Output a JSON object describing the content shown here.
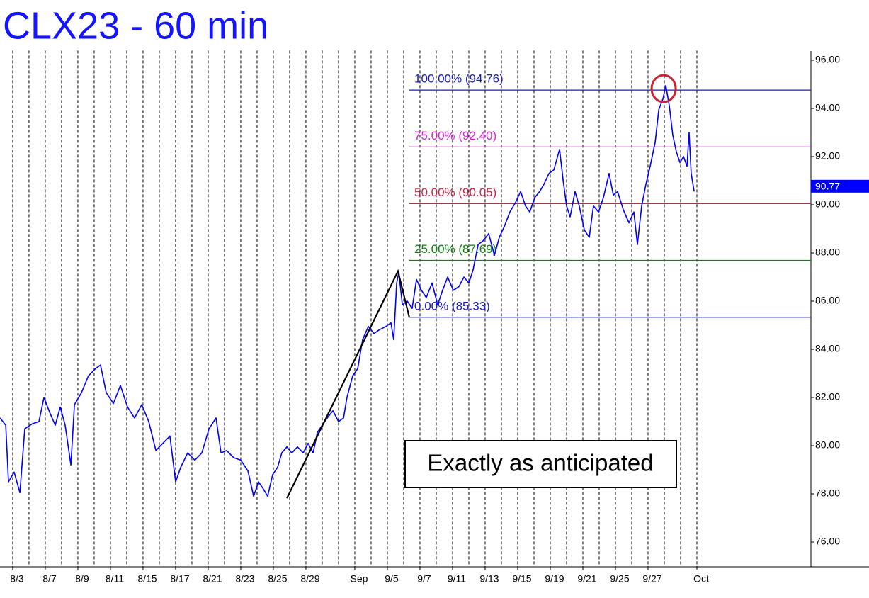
{
  "chart_data": {
    "type": "line",
    "title": "CLX23 - 60 min",
    "title_color": "#1414ff",
    "xlim": [
      -0.78,
      49.0
    ],
    "ylim": [
      75,
      96.4
    ],
    "yticks": [
      {
        "value": 76,
        "label": "76.00"
      },
      {
        "value": 78,
        "label": "78.00"
      },
      {
        "value": 80,
        "label": "80.00"
      },
      {
        "value": 82,
        "label": "82.00"
      },
      {
        "value": 84,
        "label": "84.00"
      },
      {
        "value": 86,
        "label": "86.00"
      },
      {
        "value": 88,
        "label": "88.00"
      },
      {
        "value": 90,
        "label": "90.00"
      },
      {
        "value": 92,
        "label": "92.00"
      },
      {
        "value": 94,
        "label": "94.00"
      },
      {
        "value": 96,
        "label": "96.00"
      }
    ],
    "xticks": [
      {
        "value": 0,
        "label": "8/3"
      },
      {
        "value": 2,
        "label": "8/7"
      },
      {
        "value": 4,
        "label": "8/9"
      },
      {
        "value": 6,
        "label": "8/11"
      },
      {
        "value": 8,
        "label": "8/15"
      },
      {
        "value": 10,
        "label": "8/17"
      },
      {
        "value": 12,
        "label": "8/21"
      },
      {
        "value": 14,
        "label": "8/23"
      },
      {
        "value": 16,
        "label": "8/25"
      },
      {
        "value": 18,
        "label": "8/29"
      },
      {
        "value": 21,
        "label": "Sep"
      },
      {
        "value": 23,
        "label": "9/5"
      },
      {
        "value": 25,
        "label": "9/7"
      },
      {
        "value": 27,
        "label": "9/11"
      },
      {
        "value": 29,
        "label": "9/13"
      },
      {
        "value": 31,
        "label": "9/15"
      },
      {
        "value": 33,
        "label": "9/19"
      },
      {
        "value": 35,
        "label": "9/21"
      },
      {
        "value": 37,
        "label": "9/25"
      },
      {
        "value": 39,
        "label": "9/27"
      },
      {
        "value": 42,
        "label": "Oct"
      }
    ],
    "x_gridlines": [
      0,
      1,
      2,
      3,
      4,
      5,
      6,
      7,
      8,
      9,
      10,
      11,
      12,
      13,
      14,
      15,
      16,
      17,
      18,
      19,
      20,
      21,
      22,
      23,
      24,
      25,
      26,
      27,
      28,
      29,
      30,
      31,
      32,
      33,
      34,
      35,
      36,
      37,
      38,
      39,
      40,
      41,
      42
    ],
    "series": [
      {
        "color": "#0000ff",
        "x": [
          -0.78,
          -0.43,
          -0.26,
          0.09,
          0.44,
          0.74,
          1.18,
          1.61,
          1.92,
          2.26,
          2.61,
          2.92,
          3.22,
          3.57,
          3.79,
          4.22,
          4.65,
          5.09,
          5.39,
          5.74,
          6.18,
          6.61,
          7.05,
          7.48,
          7.92,
          8.35,
          8.79,
          9.22,
          9.65,
          10.0,
          10.31,
          10.74,
          11.18,
          11.61,
          12.05,
          12.48,
          12.79,
          13.13,
          13.57,
          14.0,
          14.44,
          14.79,
          15.09,
          15.39,
          15.65,
          15.96,
          16.26,
          16.52,
          16.83,
          17.13,
          17.48,
          17.83,
          18.13,
          18.44,
          18.7,
          19.0,
          19.31,
          19.66,
          20.0,
          20.31,
          20.52,
          20.87,
          21.18,
          21.48,
          21.83,
          22.18,
          22.48,
          22.92,
          23.22,
          23.39,
          23.57,
          23.7,
          23.92,
          24.22,
          24.52,
          24.79,
          25.09,
          25.39,
          25.74,
          26.09,
          26.39,
          26.7,
          27.05,
          27.39,
          27.7,
          28.0,
          28.26,
          28.57,
          28.87,
          29.22,
          29.57,
          29.87,
          30.18,
          30.52,
          30.87,
          31.18,
          31.48,
          31.74,
          32.05,
          32.35,
          32.61,
          32.92,
          33.22,
          33.57,
          33.79,
          34.0,
          34.22,
          34.52,
          34.78,
          35.09,
          35.39,
          35.65,
          35.96,
          36.26,
          36.61,
          36.87,
          37.13,
          37.48,
          37.83,
          38.13,
          38.35,
          38.61,
          38.87,
          39.13,
          39.44,
          39.66,
          39.92,
          40.09,
          40.31,
          40.52,
          40.74,
          40.96,
          41.18,
          41.39,
          41.52,
          41.65,
          41.83
        ],
        "values": [
          81.15,
          80.85,
          78.5,
          78.9,
          78.05,
          80.7,
          80.9,
          81.0,
          82.0,
          81.4,
          80.85,
          81.6,
          80.85,
          79.2,
          81.7,
          82.2,
          82.9,
          83.2,
          83.35,
          82.2,
          81.75,
          82.5,
          81.6,
          81.15,
          81.7,
          81.0,
          79.8,
          80.1,
          80.4,
          78.5,
          79.1,
          79.7,
          79.4,
          79.7,
          80.7,
          81.15,
          79.7,
          79.8,
          79.5,
          79.4,
          78.95,
          77.9,
          78.5,
          78.2,
          77.9,
          78.8,
          79.1,
          79.7,
          79.95,
          79.7,
          79.95,
          79.7,
          80.1,
          79.7,
          80.55,
          80.85,
          81.15,
          81.45,
          81.0,
          81.15,
          82.0,
          82.9,
          83.2,
          84.4,
          84.95,
          84.65,
          84.8,
          84.95,
          85.1,
          84.4,
          86.75,
          87.2,
          85.85,
          86.0,
          85.7,
          86.9,
          86.45,
          86.15,
          86.75,
          85.85,
          86.45,
          87.0,
          86.45,
          86.6,
          87.0,
          86.75,
          87.3,
          88.35,
          88.5,
          88.8,
          87.9,
          88.65,
          89.1,
          89.7,
          90.1,
          90.55,
          89.95,
          89.7,
          90.3,
          90.55,
          90.85,
          91.3,
          91.45,
          92.3,
          91.0,
          89.95,
          89.5,
          90.55,
          89.95,
          88.95,
          88.65,
          89.95,
          89.7,
          90.3,
          91.3,
          90.4,
          90.55,
          89.8,
          89.25,
          89.7,
          88.35,
          89.95,
          90.85,
          91.6,
          92.6,
          93.95,
          94.4,
          94.95,
          94.1,
          92.9,
          92.2,
          91.75,
          92.0,
          91.6,
          93.0,
          91.3,
          90.55
        ]
      }
    ],
    "fib_start_x": 24.35,
    "fib_levels": [
      {
        "value": 94.76,
        "label": "100.00% (94.76)",
        "color": "#1a1acc"
      },
      {
        "value": 92.4,
        "label": "75.00% (92.40)",
        "color": "#e020e0"
      },
      {
        "value": 90.05,
        "label": "50.00% (90.05)",
        "color": "#cc2244"
      },
      {
        "value": 87.69,
        "label": "25.00% (87.69)",
        "color": "#108010"
      },
      {
        "value": 85.33,
        "label": "0.00% (85.33)",
        "color": "#1a1acc"
      }
    ],
    "trend_line": {
      "color": "#000000",
      "x": [
        16.83,
        23.65,
        24.35
      ],
      "y": [
        77.82,
        87.24,
        85.32
      ]
    },
    "highlight": {
      "color": "#cc2233",
      "x": 39.96,
      "y": 94.82
    },
    "last_price": 90.77,
    "annotation": "Exactly as anticipated"
  }
}
